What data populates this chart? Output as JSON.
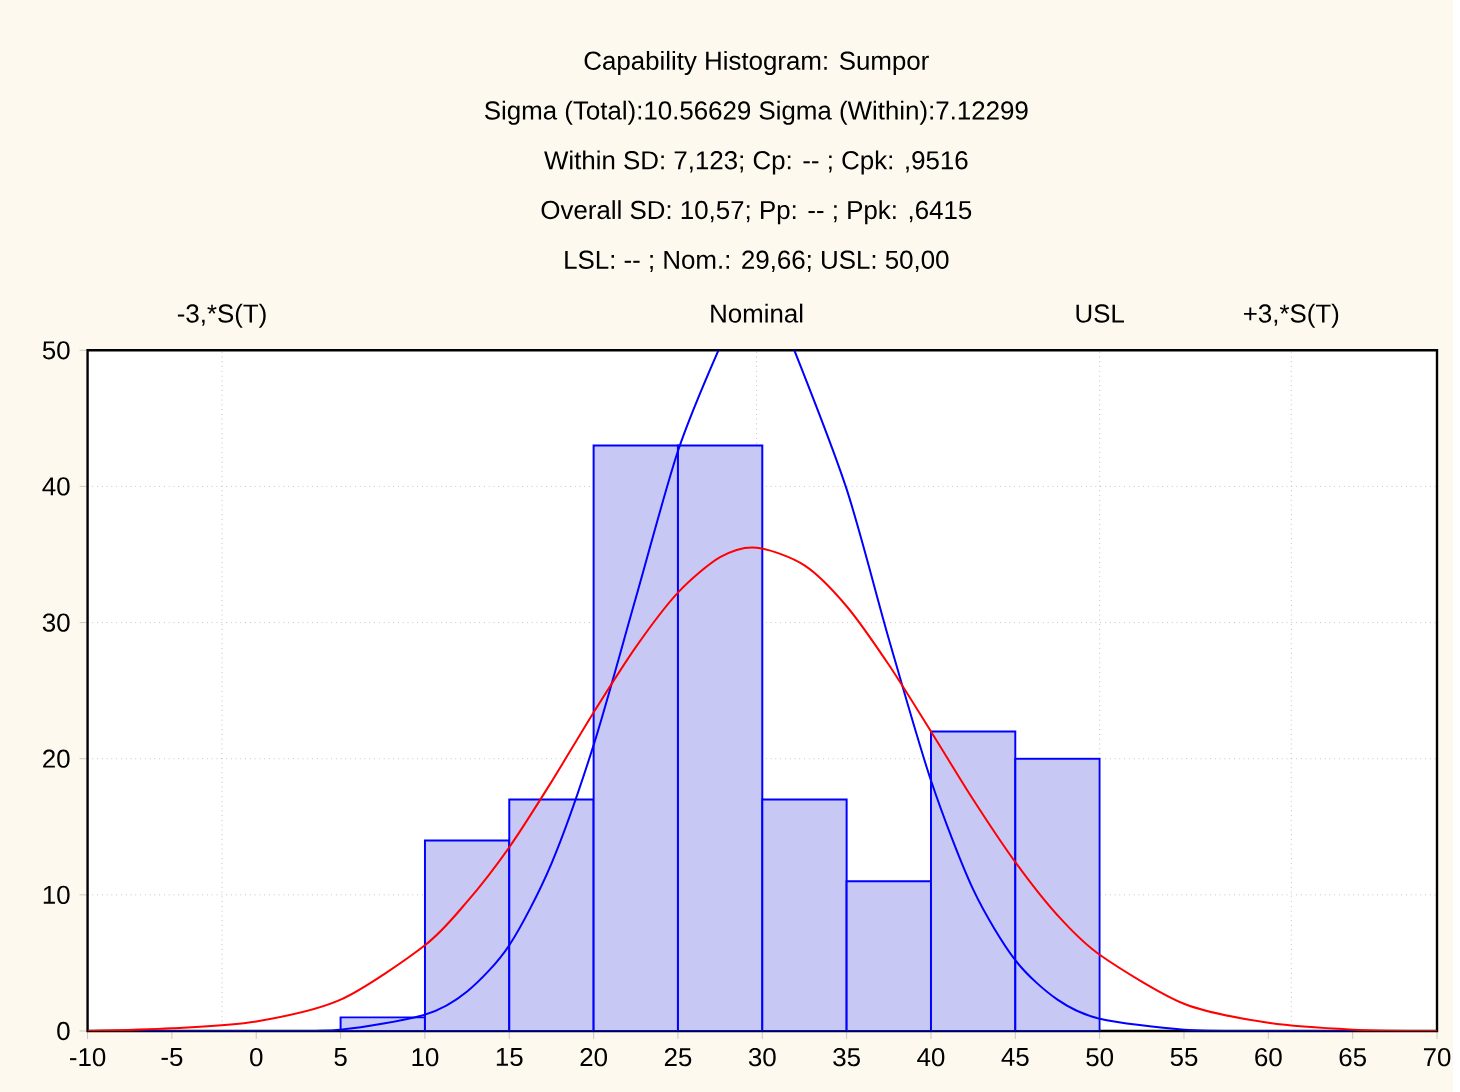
{
  "chart_data": {
    "type": "histogram",
    "title": "Capability Histogram: Sumpor",
    "subtitle": "Sigma (Total):10.56629 Sigma (Within):7.12299",
    "annotations": [
      "Within SD: 7,123; Cp:  -- ; Cpk: ,9516",
      "Overall SD: 10,57; Pp:  -- ; Ppk: ,6415",
      "LSL:  -- ; Nom.: 29,66; USL: 50,00"
    ],
    "bins": [
      5,
      10,
      15,
      20,
      25,
      30,
      35,
      40,
      45,
      50
    ],
    "values": [
      1,
      14,
      17,
      43,
      43,
      17,
      11,
      22,
      20
    ],
    "color": "#c8c8f5",
    "series": [
      {
        "type": "line",
        "color": "#0000ff",
        "x": [
          -10,
          0,
          5,
          10,
          12.5,
          15,
          17.5,
          20,
          22.5,
          25,
          27.4,
          29.66,
          31.9,
          35,
          37.5,
          40,
          42.5,
          45,
          47.5,
          50,
          55,
          60,
          70
        ],
        "values": [
          0,
          0,
          0.1,
          1.2,
          2.9,
          6.3,
          12.3,
          21,
          31.8,
          42.6,
          50,
          null,
          50,
          39.8,
          28.8,
          18.4,
          10.4,
          5.2,
          2.3,
          0.9,
          0.1,
          0,
          0
        ]
      },
      {
        "type": "line",
        "color": "#ff0000",
        "x": [
          -10,
          -5,
          0,
          5,
          10,
          12.5,
          15,
          17.5,
          20,
          22.5,
          25,
          27.5,
          29.66,
          32.5,
          35,
          37.5,
          40,
          42.5,
          45,
          47.5,
          50,
          55,
          60,
          65,
          70
        ],
        "values": [
          0,
          0.2,
          0.7,
          2.3,
          6.3,
          9.5,
          13.5,
          18.3,
          23.4,
          28.2,
          32.2,
          34.8,
          35.5,
          34.2,
          31.2,
          26.9,
          22,
          17,
          12.4,
          8.5,
          5.6,
          2,
          0.6,
          0.1,
          0
        ]
      }
    ],
    "xlim": [
      -10,
      70
    ],
    "xticks": [
      -10,
      -5,
      0,
      5,
      10,
      15,
      20,
      25,
      30,
      35,
      40,
      45,
      50,
      55,
      60,
      65,
      70
    ],
    "ylim": [
      0,
      50
    ],
    "yticks": [
      0,
      10,
      20,
      30,
      40,
      50
    ],
    "grid": "y",
    "ref_lines": [
      {
        "axis": "x",
        "value": -2.03,
        "label": "-3,*S(T)",
        "color": "#a0a0a0",
        "line_style": "dotted"
      },
      {
        "axis": "x",
        "value": 29.66,
        "label": "Nominal",
        "color": "#a0a0a0",
        "line_style": "dotted"
      },
      {
        "axis": "x",
        "value": 50,
        "label": "USL",
        "color": "#a0a0a0",
        "line_style": "dotted"
      },
      {
        "axis": "x",
        "value": 61.36,
        "label": "+3,*S(T)",
        "color": "#a0a0a0",
        "line_style": "dotted"
      }
    ]
  }
}
